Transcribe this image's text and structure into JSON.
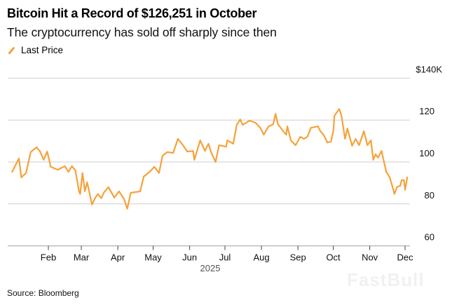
{
  "header": {
    "title": "Bitcoin Hit a Record of $126,251 in October",
    "subtitle": "The cryptocurrency has sold off sharply since then"
  },
  "footer": {
    "source": "Source: Bloomberg"
  },
  "watermark": "FastBull",
  "colors": {
    "line": "#f5a23a",
    "grid": "#cfcfcf",
    "axis": "#bdbdbd"
  },
  "chart_data": {
    "type": "line",
    "title": "Bitcoin Hit a Record of $126,251 in October",
    "subtitle": "The cryptocurrency has sold off sharply since then",
    "xlabel": "2025",
    "ylabel": "",
    "ylim": [
      60,
      140
    ],
    "yticks": [
      {
        "value": 140,
        "label": "$140K"
      },
      {
        "value": 120,
        "label": "120"
      },
      {
        "value": 100,
        "label": "100"
      },
      {
        "value": 80,
        "label": "80"
      },
      {
        "value": 60,
        "label": "60"
      }
    ],
    "xticks": [
      {
        "day": 32,
        "label": "Feb"
      },
      {
        "day": 60,
        "label": "Mar"
      },
      {
        "day": 91,
        "label": "Apr"
      },
      {
        "day": 121,
        "label": "May"
      },
      {
        "day": 152,
        "label": "Jun"
      },
      {
        "day": 182,
        "label": "Jul"
      },
      {
        "day": 213,
        "label": "Aug"
      },
      {
        "day": 244,
        "label": "Sep"
      },
      {
        "day": 274,
        "label": "Oct"
      },
      {
        "day": 305,
        "label": "Nov"
      },
      {
        "day": 335,
        "label": "Dec"
      }
    ],
    "x_unit": "day of year 2025",
    "grid": true,
    "legend": {
      "position": "top-left",
      "entries": [
        "Last Price"
      ]
    },
    "series": [
      {
        "name": "Last Price",
        "points": [
          [
            1,
            95
          ],
          [
            7,
            101.7
          ],
          [
            9,
            92.6
          ],
          [
            13,
            94.7
          ],
          [
            17,
            104.7
          ],
          [
            22,
            107
          ],
          [
            25,
            105
          ],
          [
            28,
            101
          ],
          [
            31,
            105
          ],
          [
            34,
            97.7
          ],
          [
            40,
            96.3
          ],
          [
            46,
            98
          ],
          [
            49,
            95.3
          ],
          [
            52,
            98
          ],
          [
            55,
            96
          ],
          [
            58,
            86
          ],
          [
            59,
            84.7
          ],
          [
            61,
            94.7
          ],
          [
            63,
            86
          ],
          [
            65,
            90.3
          ],
          [
            69,
            79.7
          ],
          [
            72,
            83
          ],
          [
            74,
            84.7
          ],
          [
            77,
            82.7
          ],
          [
            79,
            85.3
          ],
          [
            83,
            88
          ],
          [
            88,
            83
          ],
          [
            92,
            86
          ],
          [
            96,
            82.7
          ],
          [
            99,
            77.7
          ],
          [
            102,
            85.3
          ],
          [
            110,
            86
          ],
          [
            113,
            93
          ],
          [
            118,
            95.3
          ],
          [
            122,
            97.7
          ],
          [
            126,
            94.7
          ],
          [
            129,
            103
          ],
          [
            133,
            104.7
          ],
          [
            138,
            104.3
          ],
          [
            142,
            111
          ],
          [
            146,
            108.3
          ],
          [
            150,
            105
          ],
          [
            155,
            105.3
          ],
          [
            156,
            101
          ],
          [
            161,
            110.3
          ],
          [
            165,
            105.3
          ],
          [
            168,
            108.7
          ],
          [
            170,
            105
          ],
          [
            174,
            100
          ],
          [
            177,
            108
          ],
          [
            183,
            107.3
          ],
          [
            184,
            110.3
          ],
          [
            189,
            108.7
          ],
          [
            192,
            117.7
          ],
          [
            195,
            120.3
          ],
          [
            197,
            117.7
          ],
          [
            203,
            119.7
          ],
          [
            208,
            118.7
          ],
          [
            212,
            116.3
          ],
          [
            215,
            113
          ],
          [
            219,
            117
          ],
          [
            223,
            118
          ],
          [
            225,
            123
          ],
          [
            227,
            118
          ],
          [
            232,
            114.3
          ],
          [
            234,
            113
          ],
          [
            235,
            117
          ],
          [
            238,
            110.3
          ],
          [
            242,
            108
          ],
          [
            246,
            112
          ],
          [
            249,
            111
          ],
          [
            252,
            112
          ],
          [
            255,
            116.3
          ],
          [
            261,
            117
          ],
          [
            263,
            114.7
          ],
          [
            266,
            112.7
          ],
          [
            269,
            109.3
          ],
          [
            272,
            109.7
          ],
          [
            274,
            114.7
          ],
          [
            275,
            122
          ],
          [
            279,
            125.3
          ],
          [
            281,
            122
          ],
          [
            284,
            111
          ],
          [
            286,
            116
          ],
          [
            290,
            107.7
          ],
          [
            293,
            111
          ],
          [
            296,
            108
          ],
          [
            300,
            114.7
          ],
          [
            303,
            108
          ],
          [
            306,
            110.3
          ],
          [
            308,
            101
          ],
          [
            310,
            103.7
          ],
          [
            312,
            102
          ],
          [
            315,
            105.3
          ],
          [
            319,
            95.3
          ],
          [
            322,
            92.7
          ],
          [
            326,
            84.7
          ],
          [
            328,
            88
          ],
          [
            331,
            88.7
          ],
          [
            332,
            91.3
          ],
          [
            334,
            91.3
          ],
          [
            335,
            86.7
          ],
          [
            337,
            93
          ]
        ]
      }
    ]
  }
}
